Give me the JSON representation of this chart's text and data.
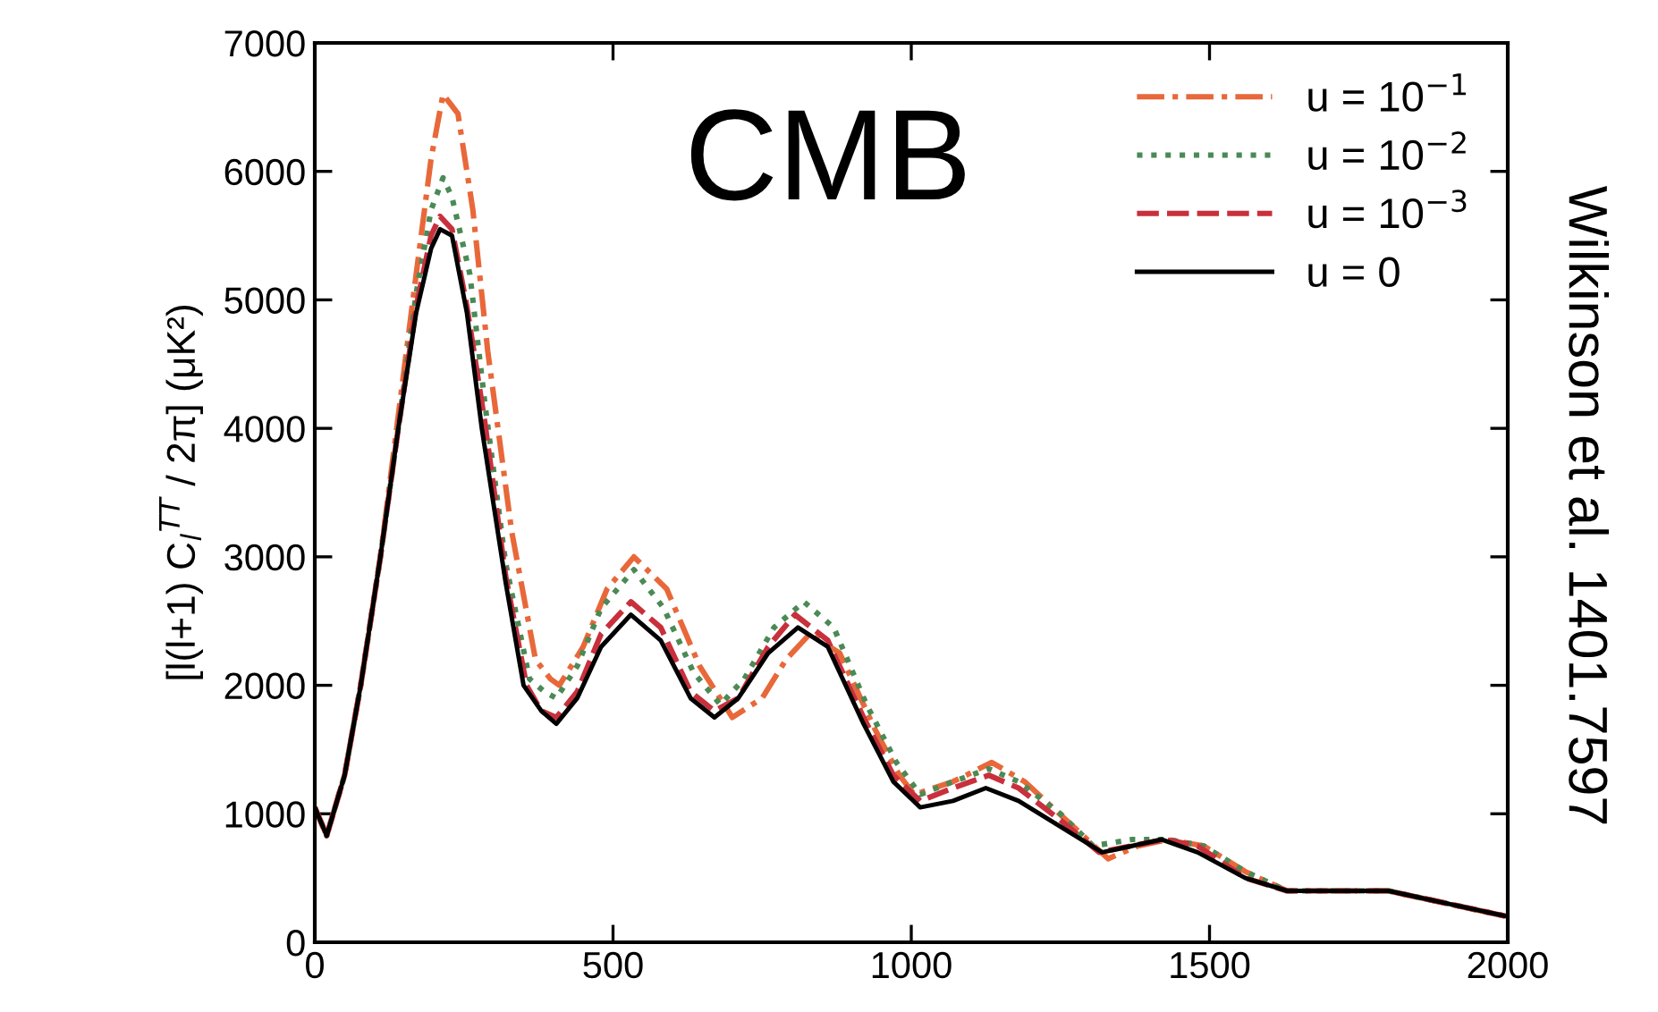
{
  "chart_data": {
    "type": "line",
    "ylabel": "[l(l+1) C$_{l}$$^{TT}$ / 2π] (μK²)",
    "annotations": [
      "CMB",
      "Wilkinson et al. 1401.7597"
    ],
    "xlim": [
      0,
      2000
    ],
    "xticks": [
      0,
      500,
      1000,
      1500,
      2000
    ],
    "ylim": [
      0,
      7000
    ],
    "yticks": [
      0,
      1000,
      2000,
      3000,
      4000,
      5000,
      6000,
      7000
    ],
    "grid": false,
    "legend": "top right",
    "series": [
      {
        "name": "u = 10$^{−1}$",
        "color": "#e8683a",
        "line_style": "dashdot",
        "x": [
          0,
          20,
          50,
          77,
          110,
          140,
          170,
          195,
          215,
          240,
          265,
          290,
          330,
          370,
          395,
          410,
          450,
          490,
          535,
          590,
          645,
          700,
          750,
          790,
          830,
          880,
          940,
          980,
          1005,
          1070,
          1135,
          1190,
          1260,
          1330,
          1380,
          1430,
          1490,
          1560,
          1630,
          1690,
          1740,
          1800,
          1900,
          2000
        ],
        "values": [
          1050,
          830,
          1300,
          2000,
          3000,
          4100,
          5200,
          6100,
          6600,
          6450,
          5700,
          4600,
          3200,
          2200,
          2050,
          2000,
          2300,
          2750,
          3000,
          2750,
          2150,
          1750,
          1900,
          2200,
          2400,
          2250,
          1650,
          1300,
          1150,
          1250,
          1400,
          1250,
          950,
          650,
          750,
          800,
          750,
          550,
          400,
          400,
          400,
          400,
          300,
          200
        ]
      },
      {
        "name": "u = 10$^{−2}$",
        "color": "#4a8a55",
        "line_style": "dotted",
        "x": [
          0,
          20,
          50,
          77,
          110,
          140,
          170,
          195,
          215,
          230,
          260,
          285,
          320,
          360,
          385,
          405,
          440,
          480,
          535,
          585,
          635,
          680,
          720,
          770,
          820,
          870,
          925,
          975,
          1015,
          1070,
          1130,
          1180,
          1250,
          1305,
          1370,
          1430,
          1490,
          1560,
          1630,
          1690,
          1740,
          1800,
          1900,
          2000
        ],
        "values": [
          1050,
          830,
          1300,
          2000,
          3000,
          4000,
          5050,
          5700,
          5950,
          5800,
          5200,
          4200,
          2950,
          2050,
          1950,
          1900,
          2150,
          2600,
          2900,
          2600,
          2100,
          1850,
          2050,
          2450,
          2650,
          2450,
          1850,
          1400,
          1150,
          1250,
          1350,
          1250,
          1000,
          750,
          800,
          800,
          750,
          550,
          400,
          400,
          400,
          400,
          300,
          200
        ]
      },
      {
        "name": "u = 10$^{−3}$",
        "color": "#c8303c",
        "line_style": "dashed",
        "x": [
          0,
          20,
          50,
          77,
          110,
          140,
          170,
          195,
          210,
          230,
          255,
          285,
          320,
          355,
          380,
          405,
          440,
          480,
          530,
          580,
          630,
          670,
          710,
          760,
          805,
          860,
          920,
          970,
          1015,
          1070,
          1130,
          1180,
          1250,
          1315,
          1370,
          1425,
          1480,
          1560,
          1630,
          1690,
          1740,
          1800,
          1900,
          2000
        ],
        "values": [
          1050,
          830,
          1300,
          2000,
          3000,
          4000,
          4950,
          5500,
          5650,
          5550,
          4950,
          4050,
          2850,
          2000,
          1800,
          1750,
          1950,
          2400,
          2650,
          2450,
          1950,
          1800,
          1900,
          2300,
          2550,
          2350,
          1750,
          1300,
          1100,
          1200,
          1300,
          1200,
          950,
          700,
          750,
          800,
          750,
          500,
          400,
          400,
          400,
          400,
          300,
          200
        ]
      },
      {
        "name": "u = 0",
        "color": "#000000",
        "line_style": "solid",
        "x": [
          0,
          20,
          50,
          77,
          110,
          140,
          170,
          195,
          210,
          230,
          255,
          280,
          320,
          350,
          380,
          405,
          440,
          480,
          530,
          580,
          630,
          670,
          710,
          760,
          810,
          860,
          920,
          970,
          1015,
          1070,
          1125,
          1180,
          1250,
          1320,
          1370,
          1420,
          1480,
          1560,
          1630,
          1690,
          1740,
          1800,
          1900,
          2000
        ],
        "values": [
          1050,
          830,
          1300,
          2000,
          3000,
          4000,
          4900,
          5400,
          5550,
          5500,
          4900,
          4000,
          2800,
          2000,
          1800,
          1700,
          1900,
          2300,
          2550,
          2350,
          1900,
          1750,
          1900,
          2250,
          2450,
          2300,
          1700,
          1250,
          1050,
          1100,
          1200,
          1100,
          900,
          700,
          750,
          800,
          700,
          500,
          400,
          400,
          400,
          400,
          300,
          200
        ]
      }
    ]
  }
}
